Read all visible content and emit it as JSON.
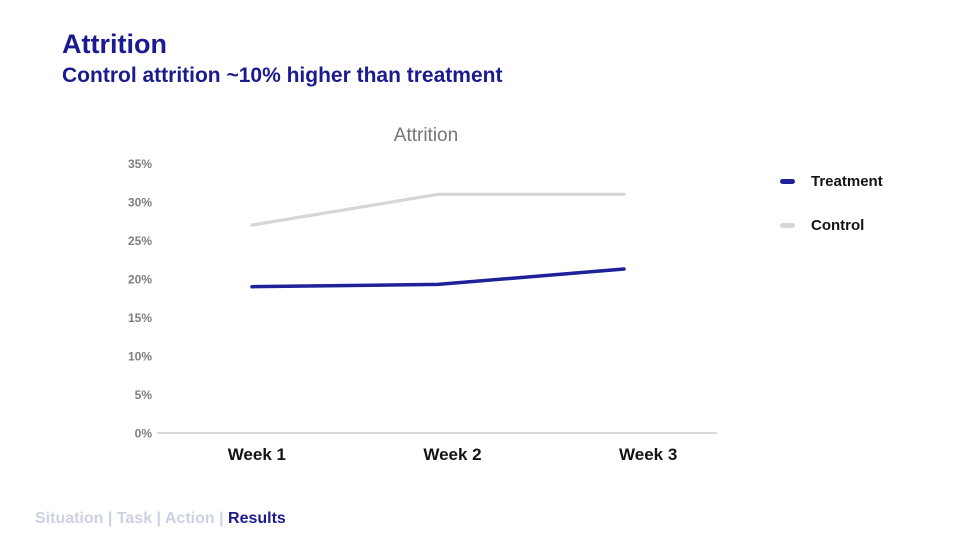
{
  "slide": {
    "title": "Attrition",
    "subtitle": "Control attrition ~10% higher than treatment",
    "title_color": "#1b1b8f"
  },
  "chart_data": {
    "type": "line",
    "title": "Attrition",
    "categories": [
      "Week 1",
      "Week 2",
      "Week 3"
    ],
    "series": [
      {
        "name": "Treatment",
        "values": [
          19,
          19.3,
          21.3
        ],
        "color": "#1f2199"
      },
      {
        "name": "Control",
        "values": [
          27,
          31,
          31
        ],
        "color": "#d6d6d6"
      }
    ],
    "y_ticks": [
      0,
      5,
      10,
      15,
      20,
      25,
      30,
      35
    ],
    "y_tick_suffix": "%",
    "ylim": [
      0,
      35
    ],
    "xlabel": "",
    "ylabel": "",
    "grid": false,
    "legend_position": "right",
    "axis_color": "#d9d9d9"
  },
  "footer": {
    "items": [
      {
        "label": "Situation",
        "active": false
      },
      {
        "label": "Task",
        "active": false
      },
      {
        "label": "Action",
        "active": false
      },
      {
        "label": "Results",
        "active": true
      }
    ],
    "separator": "|",
    "inactive_color": "#ccd1e3",
    "active_color": "#1b1b8f"
  }
}
